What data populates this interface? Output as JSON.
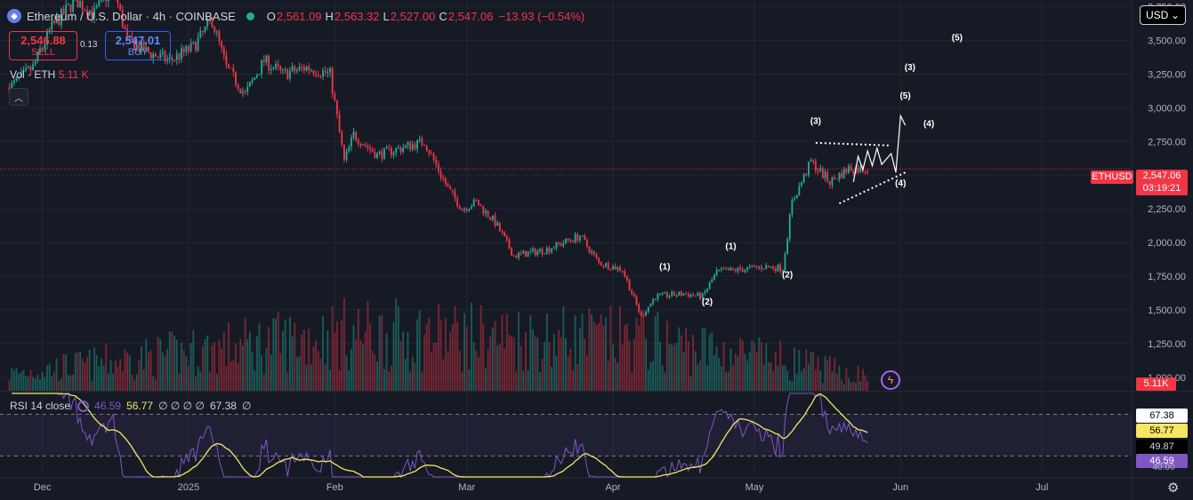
{
  "header": {
    "symbol_title": "Ethereum / U.S. Dollar · 4h · COINBASE",
    "open_label": "O",
    "open": "2,561.09",
    "high_label": "H",
    "high": "2,563.32",
    "low_label": "L",
    "low": "2,527.00",
    "close_label": "C",
    "close": "2,547.06",
    "change": "−13.93 (−0.54%)"
  },
  "trade": {
    "sell_price": "2,546.88",
    "sell_label": "SELL",
    "spread": "0.13",
    "buy_price": "2,547.01",
    "buy_label": "BUY"
  },
  "volume_legend": {
    "label": "Vol · ETH",
    "value": "5.11 K"
  },
  "rsi_legend": {
    "label": "RSI 14 close",
    "rsi": "46.59",
    "ma": "56.77",
    "placeholders": "∅ ∅ ∅ ∅",
    "upper": "67.38",
    "end": "∅"
  },
  "currency": "USD",
  "last_price": {
    "symbol": "ETHUSD",
    "price": "2,547.06",
    "countdown": "03:19:21"
  },
  "volume_tag": "5.11K",
  "rsi_tags": {
    "v1": "67.38",
    "v2": "56.77",
    "v3": "49.87",
    "v4": "46.59",
    "bottom": "40.00"
  },
  "colors": {
    "up": "#22ab94",
    "down": "#f23645",
    "rsi": "#7e57c2",
    "rsi_ma": "#f5e663",
    "bg": "#161a25"
  },
  "icons": {
    "logo": "ethereum-logo-icon",
    "settings": "gear-icon",
    "collapse": "chevron-up-icon",
    "alert": "lightning-icon"
  },
  "chart_data": {
    "type": "candlestick",
    "price_axis": {
      "ticks": [
        "3,750.00",
        "3,500.00",
        "3,250.00",
        "3,000.00",
        "2,750.00",
        "2,500.00",
        "2,250.00",
        "2,000.00",
        "1,750.00",
        "1,500.00",
        "1,250.00",
        "1,000.00"
      ],
      "ylim": [
        900,
        3800
      ]
    },
    "time_axis": {
      "ticks": [
        "Dec",
        "2025",
        "Feb",
        "Mar",
        "Apr",
        "May",
        "Jun",
        "Jul"
      ]
    },
    "price_path": [
      [
        "2024-11-24",
        3150
      ],
      [
        "2024-11-29",
        3300
      ],
      [
        "2024-12-03",
        3600
      ],
      [
        "2024-12-08",
        3800
      ],
      [
        "2024-12-12",
        3700
      ],
      [
        "2024-12-16",
        3900
      ],
      [
        "2024-12-19",
        3500
      ],
      [
        "2024-12-24",
        3400
      ],
      [
        "2024-12-28",
        3350
      ],
      [
        "2025-01-02",
        3450
      ],
      [
        "2025-01-06",
        3650
      ],
      [
        "2025-01-09",
        3300
      ],
      [
        "2025-01-13",
        3100
      ],
      [
        "2025-01-17",
        3350
      ],
      [
        "2025-01-21",
        3250
      ],
      [
        "2025-01-26",
        3300
      ],
      [
        "2025-01-31",
        3250
      ],
      [
        "2025-02-03",
        2600
      ],
      [
        "2025-02-05",
        2800
      ],
      [
        "2025-02-10",
        2650
      ],
      [
        "2025-02-15",
        2700
      ],
      [
        "2025-02-20",
        2750
      ],
      [
        "2025-02-25",
        2400
      ],
      [
        "2025-02-28",
        2250
      ],
      [
        "2025-03-03",
        2300
      ],
      [
        "2025-03-07",
        2150
      ],
      [
        "2025-03-11",
        1900
      ],
      [
        "2025-03-18",
        1950
      ],
      [
        "2025-03-25",
        2050
      ],
      [
        "2025-03-29",
        1850
      ],
      [
        "2025-04-03",
        1800
      ],
      [
        "2025-04-07",
        1450
      ],
      [
        "2025-04-10",
        1600
      ],
      [
        "2025-04-16",
        1620
      ],
      [
        "2025-04-20",
        1600
      ],
      [
        "2025-04-23",
        1780
      ],
      [
        "2025-04-28",
        1800
      ],
      [
        "2025-05-03",
        1820
      ],
      [
        "2025-05-07",
        1810
      ],
      [
        "2025-05-09",
        2300
      ],
      [
        "2025-05-13",
        2600
      ],
      [
        "2025-05-17",
        2450
      ],
      [
        "2025-05-21",
        2550
      ],
      [
        "2025-05-25",
        2547
      ]
    ],
    "volume_path": [
      [
        "2024-11-24",
        0.3
      ],
      [
        "2025-02-03",
        1.0
      ],
      [
        "2025-04-07",
        0.9
      ],
      [
        "2025-05-09",
        0.5
      ],
      [
        "2025-05-25",
        0.25
      ]
    ],
    "rsi_range": [
      40,
      80
    ],
    "rsi_levels": [
      70,
      50
    ],
    "annotations": [
      {
        "text": "(1)",
        "date": "2025-04-12",
        "price": 1800
      },
      {
        "text": "(2)",
        "date": "2025-04-21",
        "price": 1540
      },
      {
        "text": "(1)",
        "date": "2025-04-26",
        "price": 1950
      },
      {
        "text": "(2)",
        "date": "2025-05-08",
        "price": 1740
      },
      {
        "text": "(3)",
        "date": "2025-05-14",
        "price": 2880
      },
      {
        "text": "(4)",
        "date": "2025-06-01",
        "price": 2420
      },
      {
        "text": "(5)",
        "date": "2025-06-02",
        "price": 3070
      },
      {
        "text": "(4)",
        "date": "2025-06-07",
        "price": 2860
      },
      {
        "text": "(3)",
        "date": "2025-06-03",
        "price": 3280
      },
      {
        "text": "(5)",
        "date": "2025-06-13",
        "price": 3500
      }
    ],
    "triangle": {
      "upper": [
        [
          "2025-05-14",
          2740
        ],
        [
          "2025-05-30",
          2720
        ]
      ],
      "lower": [
        [
          "2025-05-19",
          2290
        ],
        [
          "2025-06-02",
          2520
        ]
      ]
    },
    "projection": [
      [
        "2025-05-22",
        2450
      ],
      [
        "2025-05-23",
        2640
      ],
      [
        "2025-05-24",
        2540
      ],
      [
        "2025-05-25",
        2680
      ],
      [
        "2025-05-26",
        2570
      ],
      [
        "2025-05-27",
        2700
      ],
      [
        "2025-05-28",
        2580
      ],
      [
        "2025-05-30",
        2660
      ],
      [
        "2025-05-31",
        2520
      ],
      [
        "2025-06-01",
        2940
      ],
      [
        "2025-06-02",
        2870
      ]
    ]
  }
}
